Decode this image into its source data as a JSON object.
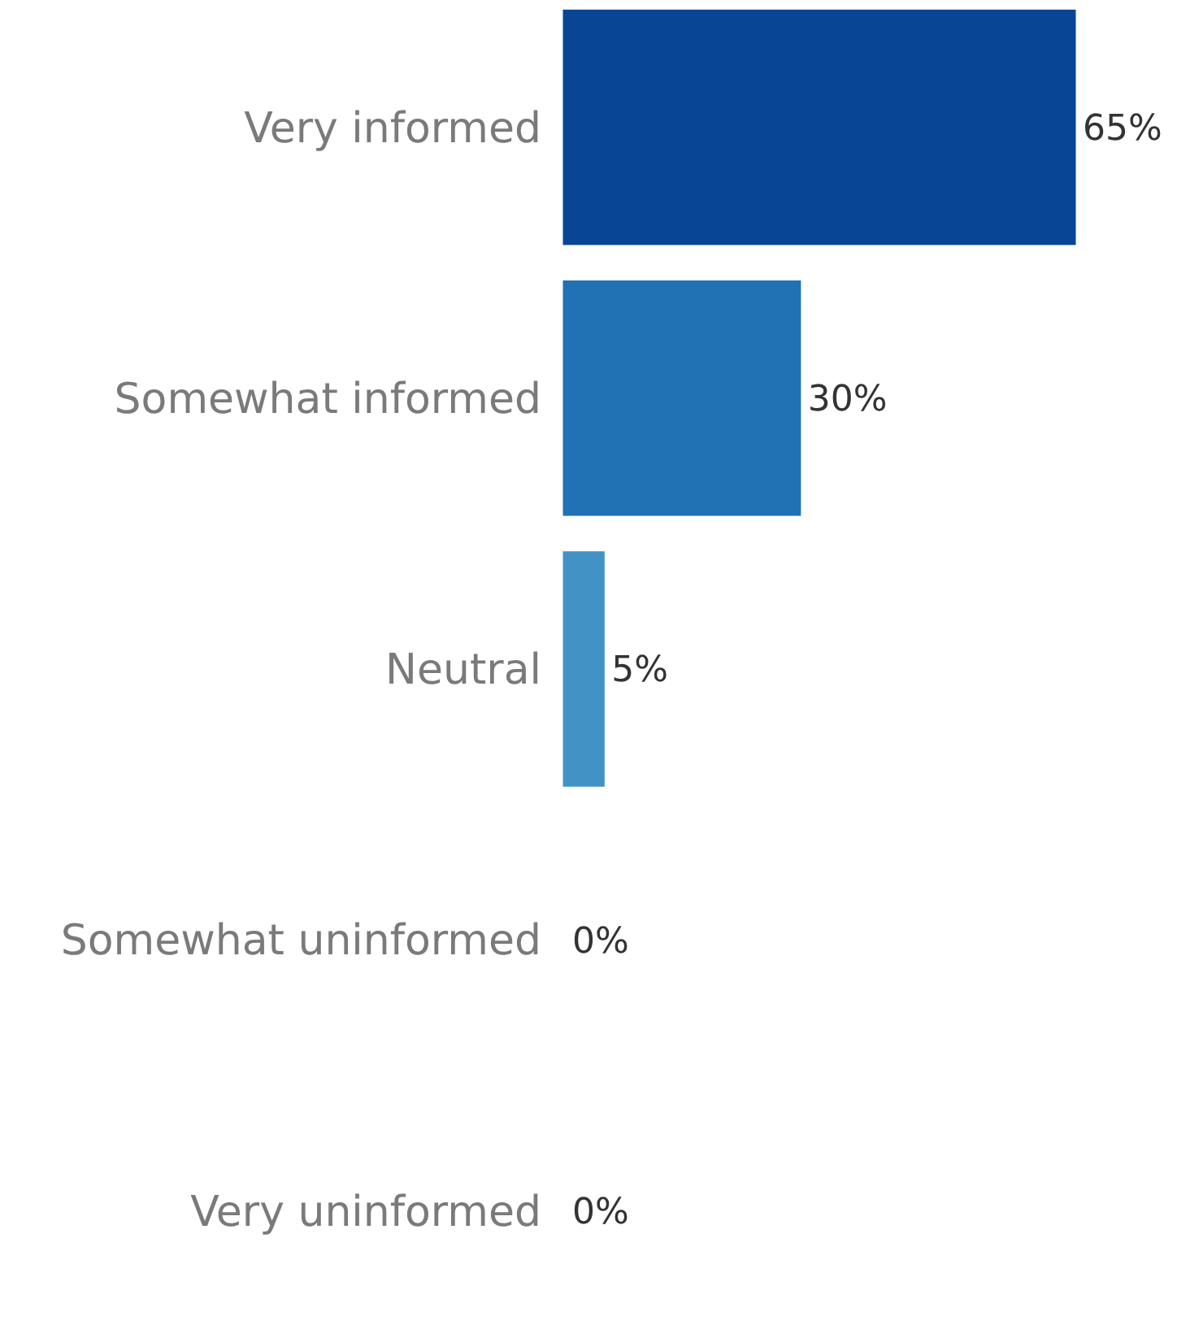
{
  "chart_data": {
    "type": "bar",
    "orientation": "horizontal",
    "categories": [
      "Very informed",
      "Somewhat informed",
      "Neutral",
      "Somewhat uninformed",
      "Very uninformed"
    ],
    "values": [
      65,
      30,
      5,
      0,
      0
    ],
    "colors": [
      "#084594",
      "#2171b5",
      "#4292c6",
      "#6baed6",
      "#9ecae1"
    ],
    "value_labels": [
      "65%",
      "30%",
      "5%",
      "0%",
      "0%"
    ]
  }
}
